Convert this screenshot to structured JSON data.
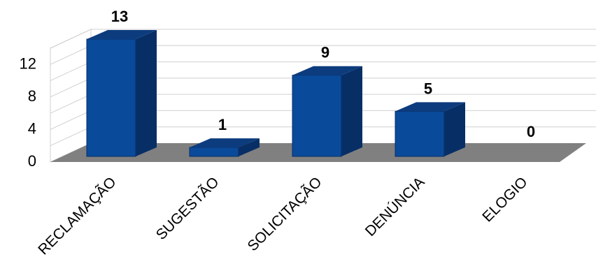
{
  "chart_data": {
    "type": "bar",
    "categories": [
      "RECLAMAÇÃO",
      "SUGESTÃO",
      "SOLICITAÇÃO",
      "DENÚNCIA",
      "ELOGIO"
    ],
    "values": [
      13,
      1,
      9,
      5,
      0
    ],
    "ylim": [
      0,
      14
    ],
    "yticks": [
      0,
      4,
      8,
      12
    ],
    "grid": true,
    "style": "3d",
    "colors": {
      "bar_front": "#0a4a9a",
      "bar_side": "#072f66",
      "bar_top": "#0d3c7e",
      "floor": "#808080"
    }
  }
}
